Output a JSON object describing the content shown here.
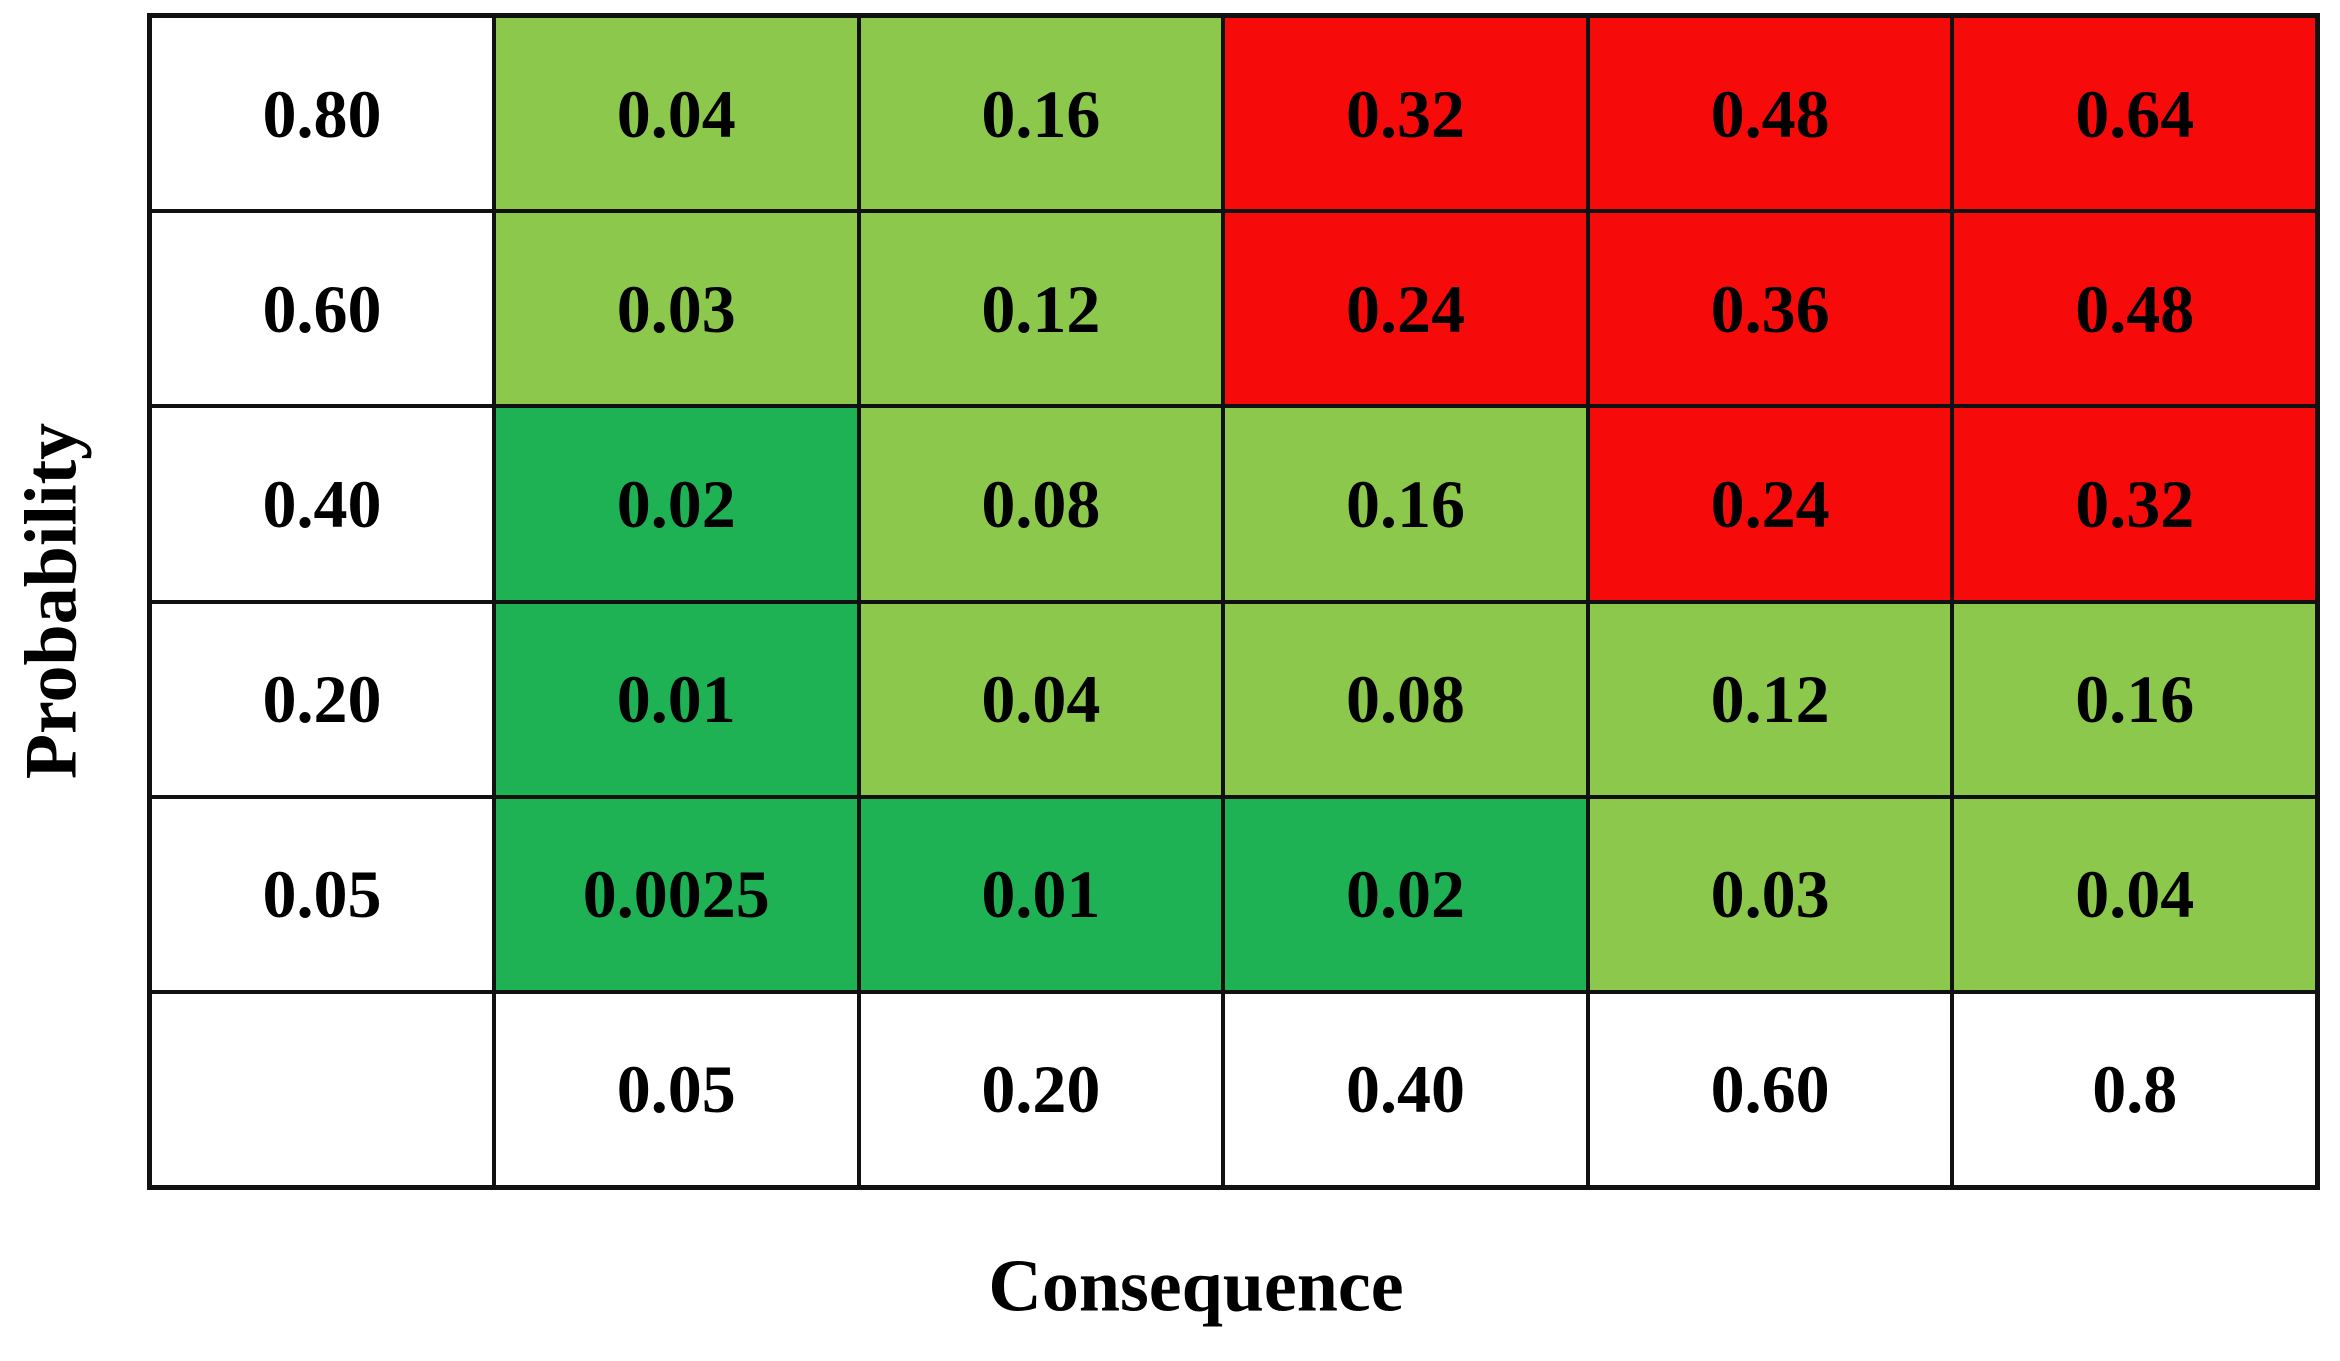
{
  "figure": {
    "xlabel": "Consequence",
    "ylabel": "Probability"
  },
  "colors": {
    "white": "#ffffff",
    "light_green": "#8CC84B",
    "dark_green": "#1FB254",
    "red": "#F70A0A",
    "grid_line": "#111111",
    "text": "#000000",
    "background": "#ffffff"
  },
  "chart_data": {
    "type": "heatmap",
    "title": "",
    "xlabel": "Consequence",
    "ylabel": "Probability",
    "x_tick_labels": [
      "0.05",
      "0.20",
      "0.40",
      "0.60",
      "0.8"
    ],
    "y_tick_labels": [
      "0.80",
      "0.60",
      "0.40",
      "0.20",
      "0.05"
    ],
    "x_values": [
      0.05,
      0.2,
      0.4,
      0.6,
      0.8
    ],
    "y_values": [
      0.8,
      0.6,
      0.4,
      0.2,
      0.05
    ],
    "legend_position": "none",
    "grid": true,
    "rows": [
      {
        "y_label": "0.80",
        "cells": [
          {
            "text": "0.04",
            "value": 0.04,
            "color": "light_green"
          },
          {
            "text": "0.16",
            "value": 0.16,
            "color": "light_green"
          },
          {
            "text": "0.32",
            "value": 0.32,
            "color": "red"
          },
          {
            "text": "0.48",
            "value": 0.48,
            "color": "red"
          },
          {
            "text": "0.64",
            "value": 0.64,
            "color": "red"
          }
        ]
      },
      {
        "y_label": "0.60",
        "cells": [
          {
            "text": "0.03",
            "value": 0.03,
            "color": "light_green"
          },
          {
            "text": "0.12",
            "value": 0.12,
            "color": "light_green"
          },
          {
            "text": "0.24",
            "value": 0.24,
            "color": "red"
          },
          {
            "text": "0.36",
            "value": 0.36,
            "color": "red"
          },
          {
            "text": "0.48",
            "value": 0.48,
            "color": "red"
          }
        ]
      },
      {
        "y_label": "0.40",
        "cells": [
          {
            "text": "0.02",
            "value": 0.02,
            "color": "dark_green"
          },
          {
            "text": "0.08",
            "value": 0.08,
            "color": "light_green"
          },
          {
            "text": "0.16",
            "value": 0.16,
            "color": "light_green"
          },
          {
            "text": "0.24",
            "value": 0.24,
            "color": "red"
          },
          {
            "text": "0.32",
            "value": 0.32,
            "color": "red"
          }
        ]
      },
      {
        "y_label": "0.20",
        "cells": [
          {
            "text": "0.01",
            "value": 0.01,
            "color": "dark_green"
          },
          {
            "text": "0.04",
            "value": 0.04,
            "color": "light_green"
          },
          {
            "text": "0.08",
            "value": 0.08,
            "color": "light_green"
          },
          {
            "text": "0.12",
            "value": 0.12,
            "color": "light_green"
          },
          {
            "text": "0.16",
            "value": 0.16,
            "color": "light_green"
          }
        ]
      },
      {
        "y_label": "0.05",
        "cells": [
          {
            "text": "0.0025",
            "value": 0.0025,
            "color": "dark_green"
          },
          {
            "text": "0.01",
            "value": 0.01,
            "color": "dark_green"
          },
          {
            "text": "0.02",
            "value": 0.02,
            "color": "dark_green"
          },
          {
            "text": "0.03",
            "value": 0.03,
            "color": "light_green"
          },
          {
            "text": "0.04",
            "value": 0.04,
            "color": "light_green"
          }
        ]
      }
    ],
    "bottom_row": [
      "",
      "0.05",
      "0.20",
      "0.40",
      "0.60",
      "0.8"
    ]
  }
}
